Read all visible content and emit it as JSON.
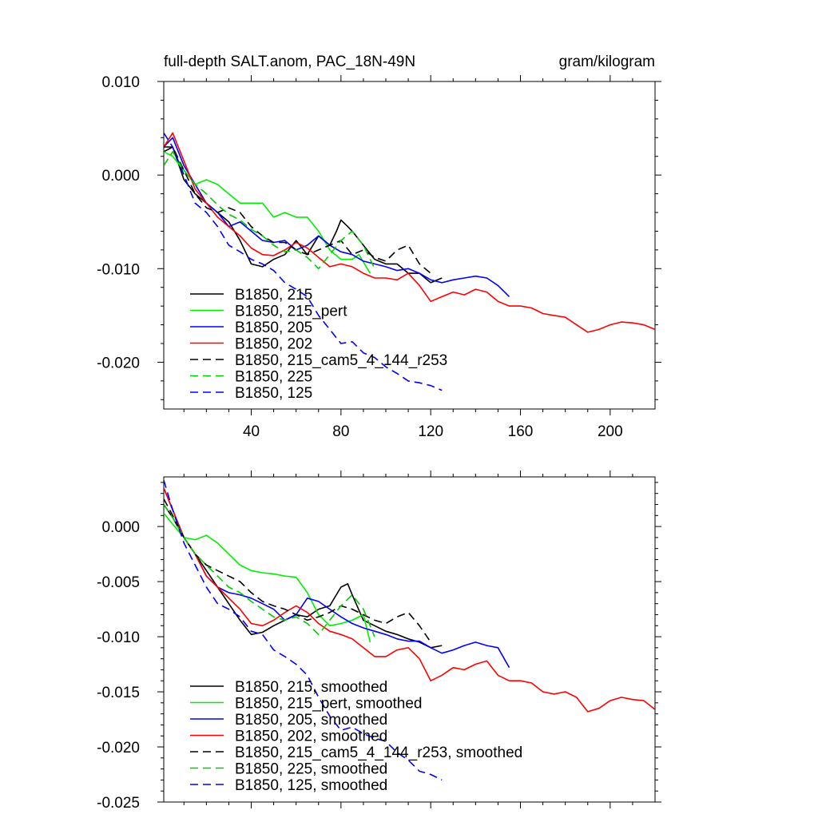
{
  "chart_data": [
    {
      "type": "line",
      "title": "full-depth SALT.anom, PAC_18N-49N",
      "units_label": "gram/kilogram",
      "xlabel": "",
      "ylabel": "",
      "xlim": [
        1,
        220
      ],
      "ylim": [
        -0.025,
        0.01
      ],
      "xticks": [
        40,
        80,
        120,
        160,
        200
      ],
      "xtick_labels": [
        "40",
        "80",
        "120",
        "160",
        "200"
      ],
      "yticks": [
        0.01,
        0.0,
        -0.01,
        -0.02
      ],
      "ytick_labels": [
        "0.010",
        "0.000",
        "-0.010",
        "-0.020"
      ],
      "legend_position": "bottom-left",
      "series": [
        {
          "name": "B1850, 215",
          "color": "#000000",
          "dash": "solid",
          "x": [
            1,
            5,
            10,
            15,
            20,
            25,
            30,
            35,
            40,
            45,
            50,
            55,
            60,
            65,
            70,
            75,
            78,
            80,
            83,
            85,
            90,
            95,
            100,
            105,
            110,
            115,
            120,
            125
          ],
          "y": [
            0.0025,
            0.003,
            -0.0005,
            -0.002,
            -0.003,
            -0.004,
            -0.005,
            -0.007,
            -0.0095,
            -0.0098,
            -0.009,
            -0.0085,
            -0.007,
            -0.0085,
            -0.0065,
            -0.0075,
            -0.006,
            -0.0048,
            -0.0055,
            -0.006,
            -0.0075,
            -0.009,
            -0.0095,
            -0.0095,
            -0.0105,
            -0.0105,
            -0.0115,
            -0.011
          ]
        },
        {
          "name": "B1850, 215_pert",
          "color": "#00ee00",
          "dash": "solid",
          "x": [
            1,
            5,
            10,
            15,
            20,
            25,
            30,
            35,
            40,
            45,
            50,
            55,
            60,
            65,
            70,
            75,
            80,
            85,
            88,
            93
          ],
          "y": [
            0.0025,
            0.002,
            0.0005,
            -0.001,
            -0.0005,
            -0.001,
            -0.002,
            -0.003,
            -0.003,
            -0.003,
            -0.0045,
            -0.004,
            -0.0045,
            -0.0045,
            -0.006,
            -0.008,
            -0.009,
            -0.009,
            -0.0085,
            -0.0105
          ]
        },
        {
          "name": "B1850, 205",
          "color": "#0000ff",
          "dash": "solid",
          "x": [
            1,
            5,
            10,
            15,
            20,
            25,
            30,
            35,
            40,
            45,
            50,
            55,
            60,
            65,
            70,
            75,
            80,
            85,
            90,
            95,
            100,
            105,
            110,
            115,
            120,
            125,
            130,
            135,
            140,
            145,
            150,
            155
          ],
          "y": [
            0.003,
            0.004,
            0.001,
            -0.001,
            -0.003,
            -0.004,
            -0.0055,
            -0.005,
            -0.006,
            -0.007,
            -0.0072,
            -0.007,
            -0.008,
            -0.0075,
            -0.0065,
            -0.0075,
            -0.0082,
            -0.0085,
            -0.0092,
            -0.0095,
            -0.0098,
            -0.0102,
            -0.01,
            -0.0105,
            -0.0112,
            -0.0115,
            -0.0112,
            -0.011,
            -0.0108,
            -0.011,
            -0.0118,
            -0.013
          ]
        },
        {
          "name": "B1850, 202",
          "color": "#ff0000",
          "dash": "solid",
          "x": [
            1,
            5,
            10,
            15,
            20,
            25,
            30,
            35,
            40,
            45,
            50,
            55,
            60,
            65,
            70,
            75,
            80,
            85,
            90,
            95,
            100,
            105,
            110,
            115,
            120,
            125,
            130,
            135,
            140,
            145,
            150,
            155,
            160,
            165,
            170,
            175,
            180,
            185,
            190,
            195,
            200,
            205,
            210,
            215,
            220
          ],
          "y": [
            0.003,
            0.0045,
            0.0015,
            -0.0015,
            -0.003,
            -0.0045,
            -0.0055,
            -0.0065,
            -0.0078,
            -0.0085,
            -0.0086,
            -0.008,
            -0.0072,
            -0.0078,
            -0.0088,
            -0.0098,
            -0.0095,
            -0.0098,
            -0.0105,
            -0.011,
            -0.011,
            -0.0112,
            -0.0105,
            -0.0118,
            -0.0135,
            -0.013,
            -0.0125,
            -0.0128,
            -0.0122,
            -0.0125,
            -0.0135,
            -0.014,
            -0.014,
            -0.0142,
            -0.0148,
            -0.015,
            -0.0152,
            -0.016,
            -0.0168,
            -0.0165,
            -0.016,
            -0.0157,
            -0.0158,
            -0.016,
            -0.0165
          ]
        },
        {
          "name": "B1850, 215_cam5_4_144_r253",
          "color": "#000000",
          "dash": "dashed",
          "x": [
            1,
            5,
            10,
            15,
            20,
            25,
            30,
            35,
            40,
            45,
            50,
            55,
            60,
            65,
            70,
            75,
            80,
            85,
            90,
            95,
            100,
            105,
            110,
            115,
            120
          ],
          "y": [
            0.003,
            0.003,
            0.0005,
            -0.002,
            -0.0035,
            -0.004,
            -0.0035,
            -0.004,
            -0.0055,
            -0.0065,
            -0.0072,
            -0.0072,
            -0.008,
            -0.0085,
            -0.008,
            -0.0075,
            -0.007,
            -0.0085,
            -0.008,
            -0.0088,
            -0.0092,
            -0.008,
            -0.0075,
            -0.0095,
            -0.0105
          ]
        },
        {
          "name": "B1850, 225",
          "color": "#00cc00",
          "dash": "dashed",
          "x": [
            1,
            5,
            10,
            15,
            20,
            25,
            30,
            35,
            40,
            45,
            50,
            55,
            60,
            65,
            70,
            75,
            80,
            85,
            90,
            95
          ],
          "y": [
            0.001,
            0.0025,
            0.0005,
            -0.001,
            -0.002,
            -0.0032,
            -0.0042,
            -0.0048,
            -0.0058,
            -0.0065,
            -0.0075,
            -0.0082,
            -0.008,
            -0.0088,
            -0.01,
            -0.0085,
            -0.007,
            -0.006,
            -0.0075,
            -0.01
          ]
        },
        {
          "name": "B1850, 125",
          "color": "#0000ff",
          "dash": "dashed",
          "x": [
            1,
            5,
            10,
            15,
            20,
            25,
            30,
            35,
            40,
            45,
            50,
            55,
            60,
            65,
            70,
            75,
            80,
            85,
            90,
            95,
            100,
            105,
            110,
            115,
            120,
            125
          ],
          "y": [
            0.0045,
            0.003,
            0.0,
            -0.003,
            -0.004,
            -0.0055,
            -0.0075,
            -0.0082,
            -0.009,
            -0.0095,
            -0.0102,
            -0.0115,
            -0.0122,
            -0.013,
            -0.015,
            -0.0165,
            -0.018,
            -0.0178,
            -0.019,
            -0.0195,
            -0.0205,
            -0.0212,
            -0.022,
            -0.0222,
            -0.0225,
            -0.023
          ]
        }
      ]
    },
    {
      "type": "line",
      "title": "",
      "xlabel": "",
      "ylabel": "",
      "xlim": [
        1,
        220
      ],
      "ylim": [
        -0.025,
        0.0045
      ],
      "xticks": [
        40,
        80,
        120,
        160,
        200
      ],
      "xtick_labels": [
        "",
        "",
        "",
        "",
        ""
      ],
      "yticks": [
        0.0,
        -0.005,
        -0.01,
        -0.015,
        -0.02,
        -0.025
      ],
      "ytick_labels": [
        "0.000",
        "-0.005",
        "-0.010",
        "-0.015",
        "-0.020",
        "-0.025"
      ],
      "legend_position": "bottom-left",
      "series": [
        {
          "name": "B1850, 215, smoothed",
          "color": "#000000",
          "dash": "solid",
          "x": [
            1,
            5,
            10,
            15,
            20,
            25,
            30,
            35,
            40,
            45,
            50,
            55,
            60,
            65,
            70,
            75,
            80,
            83,
            85,
            90,
            95,
            100,
            105,
            110,
            115,
            120,
            125
          ],
          "y": [
            0.002,
            0.0008,
            -0.001,
            -0.0025,
            -0.004,
            -0.0055,
            -0.007,
            -0.0085,
            -0.0098,
            -0.0096,
            -0.009,
            -0.0085,
            -0.008,
            -0.0082,
            -0.0075,
            -0.0072,
            -0.0055,
            -0.0052,
            -0.0062,
            -0.0085,
            -0.009,
            -0.0095,
            -0.0098,
            -0.0102,
            -0.0105,
            -0.011,
            -0.0108
          ]
        },
        {
          "name": "B1850, 215_pert, smoothed",
          "color": "#00ee00",
          "dash": "solid",
          "x": [
            1,
            5,
            10,
            15,
            20,
            25,
            30,
            35,
            40,
            45,
            50,
            55,
            60,
            65,
            70,
            75,
            80,
            85,
            90,
            93
          ],
          "y": [
            0.0012,
            0.0002,
            -0.001,
            -0.0012,
            -0.0008,
            -0.0015,
            -0.0025,
            -0.0035,
            -0.004,
            -0.0042,
            -0.0043,
            -0.0045,
            -0.0046,
            -0.006,
            -0.008,
            -0.009,
            -0.0088,
            -0.0085,
            -0.008,
            -0.0105
          ]
        },
        {
          "name": "B1850, 205, smoothed",
          "color": "#0000ff",
          "dash": "solid",
          "x": [
            1,
            5,
            10,
            15,
            20,
            25,
            30,
            35,
            40,
            45,
            50,
            55,
            60,
            65,
            70,
            75,
            80,
            85,
            90,
            95,
            100,
            105,
            110,
            115,
            120,
            125,
            130,
            135,
            140,
            145,
            150,
            155
          ],
          "y": [
            0.0035,
            0.0015,
            -0.001,
            -0.0025,
            -0.0045,
            -0.0055,
            -0.006,
            -0.0062,
            -0.0065,
            -0.007,
            -0.0075,
            -0.0085,
            -0.008,
            -0.0065,
            -0.0068,
            -0.0075,
            -0.0082,
            -0.0088,
            -0.0092,
            -0.0095,
            -0.0098,
            -0.0102,
            -0.0104,
            -0.0104,
            -0.011,
            -0.0115,
            -0.0112,
            -0.0108,
            -0.0105,
            -0.0108,
            -0.011,
            -0.0128
          ]
        },
        {
          "name": "B1850, 202, smoothed",
          "color": "#ff0000",
          "dash": "solid",
          "x": [
            1,
            5,
            10,
            15,
            20,
            25,
            30,
            35,
            40,
            45,
            50,
            55,
            60,
            65,
            70,
            75,
            80,
            85,
            90,
            95,
            100,
            105,
            110,
            115,
            120,
            125,
            130,
            135,
            140,
            145,
            150,
            155,
            160,
            165,
            170,
            175,
            180,
            185,
            190,
            195,
            200,
            205,
            210,
            215,
            220
          ],
          "y": [
            0.0035,
            0.0015,
            -0.001,
            -0.0025,
            -0.0045,
            -0.0055,
            -0.0065,
            -0.0075,
            -0.0088,
            -0.009,
            -0.0085,
            -0.0078,
            -0.0072,
            -0.0078,
            -0.0088,
            -0.0095,
            -0.0098,
            -0.0102,
            -0.011,
            -0.0118,
            -0.0118,
            -0.0112,
            -0.011,
            -0.012,
            -0.014,
            -0.0135,
            -0.0128,
            -0.013,
            -0.0125,
            -0.0122,
            -0.0135,
            -0.014,
            -0.014,
            -0.0142,
            -0.015,
            -0.0152,
            -0.015,
            -0.0155,
            -0.0168,
            -0.0165,
            -0.0158,
            -0.0155,
            -0.0157,
            -0.0158,
            -0.0166
          ]
        },
        {
          "name": "B1850, 215_cam5_4_144_r253, smoothed",
          "color": "#000000",
          "dash": "dashed",
          "x": [
            1,
            5,
            10,
            15,
            20,
            25,
            30,
            35,
            40,
            45,
            50,
            55,
            60,
            65,
            70,
            75,
            80,
            85,
            90,
            95,
            100,
            105,
            110,
            115,
            120
          ],
          "y": [
            0.0025,
            0.001,
            -0.001,
            -0.0025,
            -0.0035,
            -0.004,
            -0.0045,
            -0.005,
            -0.006,
            -0.0068,
            -0.0072,
            -0.0075,
            -0.008,
            -0.0085,
            -0.0082,
            -0.0078,
            -0.0072,
            -0.0075,
            -0.008,
            -0.0085,
            -0.0088,
            -0.0082,
            -0.0078,
            -0.009,
            -0.0105
          ]
        },
        {
          "name": "B1850, 225, smoothed",
          "color": "#00cc00",
          "dash": "dashed",
          "x": [
            1,
            5,
            10,
            15,
            20,
            25,
            30,
            35,
            40,
            45,
            50,
            55,
            60,
            65,
            70,
            75,
            80,
            85,
            90,
            95
          ],
          "y": [
            0.002,
            0.0008,
            -0.001,
            -0.0025,
            -0.0035,
            -0.0045,
            -0.0055,
            -0.006,
            -0.0068,
            -0.0075,
            -0.0082,
            -0.0085,
            -0.0082,
            -0.0088,
            -0.0098,
            -0.0085,
            -0.0072,
            -0.0062,
            -0.0075,
            -0.01
          ]
        },
        {
          "name": "B1850, 125, smoothed",
          "color": "#0000ff",
          "dash": "dashed",
          "x": [
            1,
            5,
            10,
            15,
            20,
            25,
            30,
            35,
            40,
            45,
            50,
            55,
            60,
            65,
            70,
            75,
            80,
            85,
            90,
            95,
            100,
            105,
            110,
            115,
            120,
            125
          ],
          "y": [
            0.0042,
            0.0015,
            -0.0015,
            -0.0035,
            -0.0055,
            -0.007,
            -0.0075,
            -0.0082,
            -0.0095,
            -0.0098,
            -0.0112,
            -0.0118,
            -0.0125,
            -0.0135,
            -0.0155,
            -0.0172,
            -0.0185,
            -0.0182,
            -0.0188,
            -0.0192,
            -0.0195,
            -0.0205,
            -0.0212,
            -0.0222,
            -0.0225,
            -0.023
          ]
        }
      ]
    }
  ]
}
